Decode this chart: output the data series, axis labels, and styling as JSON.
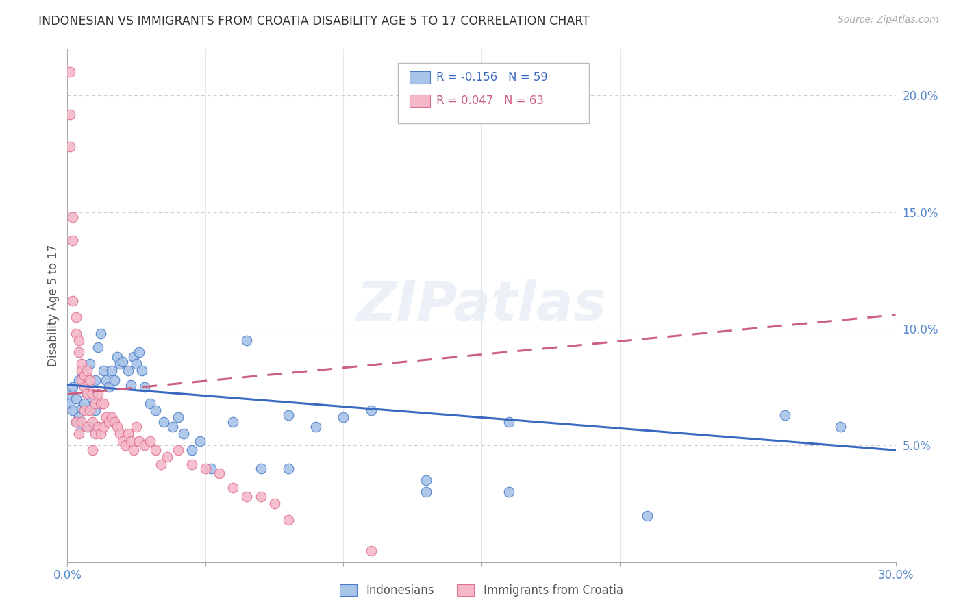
{
  "title": "INDONESIAN VS IMMIGRANTS FROM CROATIA DISABILITY AGE 5 TO 17 CORRELATION CHART",
  "source": "Source: ZipAtlas.com",
  "ylabel": "Disability Age 5 to 17",
  "xlim": [
    0.0,
    0.3
  ],
  "ylim": [
    0.0,
    0.22
  ],
  "x_ticks": [
    0.0,
    0.05,
    0.1,
    0.15,
    0.2,
    0.25,
    0.3
  ],
  "y_ticks_right": [
    0.05,
    0.1,
    0.15,
    0.2
  ],
  "legend_blue_r": "-0.156",
  "legend_blue_n": "59",
  "legend_pink_r": "0.047",
  "legend_pink_n": "63",
  "blue_fill": "#a8c4e8",
  "pink_fill": "#f5b8c8",
  "blue_edge": "#4a7cc7",
  "pink_edge": "#e07090",
  "blue_line": "#3a6abf",
  "pink_line": "#cc6080",
  "grid_color": "#cccccc",
  "title_color": "#333333",
  "axis_label_color": "#5588cc",
  "indonesians_x": [
    0.001,
    0.001,
    0.002,
    0.002,
    0.003,
    0.003,
    0.004,
    0.004,
    0.005,
    0.005,
    0.006,
    0.006,
    0.007,
    0.008,
    0.008,
    0.009,
    0.01,
    0.01,
    0.011,
    0.012,
    0.013,
    0.014,
    0.015,
    0.016,
    0.017,
    0.018,
    0.019,
    0.02,
    0.022,
    0.023,
    0.024,
    0.025,
    0.026,
    0.027,
    0.028,
    0.03,
    0.032,
    0.035,
    0.038,
    0.04,
    0.042,
    0.045,
    0.048,
    0.052,
    0.06,
    0.065,
    0.07,
    0.08,
    0.09,
    0.1,
    0.11,
    0.13,
    0.16,
    0.21,
    0.26,
    0.28,
    0.13,
    0.16,
    0.08
  ],
  "indonesians_y": [
    0.068,
    0.072,
    0.065,
    0.075,
    0.06,
    0.07,
    0.062,
    0.078,
    0.058,
    0.066,
    0.08,
    0.068,
    0.072,
    0.058,
    0.085,
    0.07,
    0.078,
    0.065,
    0.092,
    0.098,
    0.082,
    0.078,
    0.075,
    0.082,
    0.078,
    0.088,
    0.085,
    0.086,
    0.082,
    0.076,
    0.088,
    0.085,
    0.09,
    0.082,
    0.075,
    0.068,
    0.065,
    0.06,
    0.058,
    0.062,
    0.055,
    0.048,
    0.052,
    0.04,
    0.06,
    0.095,
    0.04,
    0.04,
    0.058,
    0.062,
    0.065,
    0.03,
    0.06,
    0.02,
    0.063,
    0.058,
    0.035,
    0.03,
    0.063
  ],
  "croatia_x": [
    0.001,
    0.001,
    0.001,
    0.002,
    0.002,
    0.002,
    0.003,
    0.003,
    0.003,
    0.004,
    0.004,
    0.004,
    0.005,
    0.005,
    0.005,
    0.005,
    0.006,
    0.006,
    0.006,
    0.007,
    0.007,
    0.007,
    0.008,
    0.008,
    0.009,
    0.009,
    0.009,
    0.01,
    0.01,
    0.011,
    0.011,
    0.012,
    0.012,
    0.013,
    0.013,
    0.014,
    0.015,
    0.016,
    0.017,
    0.018,
    0.019,
    0.02,
    0.021,
    0.022,
    0.023,
    0.024,
    0.025,
    0.026,
    0.028,
    0.03,
    0.032,
    0.034,
    0.036,
    0.04,
    0.045,
    0.05,
    0.055,
    0.06,
    0.065,
    0.07,
    0.075,
    0.08,
    0.11
  ],
  "croatia_y": [
    0.21,
    0.192,
    0.178,
    0.148,
    0.138,
    0.112,
    0.105,
    0.098,
    0.06,
    0.095,
    0.09,
    0.055,
    0.085,
    0.082,
    0.078,
    0.06,
    0.08,
    0.075,
    0.065,
    0.082,
    0.072,
    0.058,
    0.078,
    0.065,
    0.072,
    0.06,
    0.048,
    0.068,
    0.055,
    0.072,
    0.058,
    0.068,
    0.055,
    0.068,
    0.058,
    0.062,
    0.06,
    0.062,
    0.06,
    0.058,
    0.055,
    0.052,
    0.05,
    0.055,
    0.052,
    0.048,
    0.058,
    0.052,
    0.05,
    0.052,
    0.048,
    0.042,
    0.045,
    0.048,
    0.042,
    0.04,
    0.038,
    0.032,
    0.028,
    0.028,
    0.025,
    0.018,
    0.005
  ],
  "blue_trend_x": [
    0.0,
    0.3
  ],
  "blue_trend_y_start": 0.076,
  "blue_trend_y_end": 0.048,
  "pink_trend_x": [
    0.0,
    0.3
  ],
  "pink_trend_y_start": 0.072,
  "pink_trend_y_end": 0.106
}
